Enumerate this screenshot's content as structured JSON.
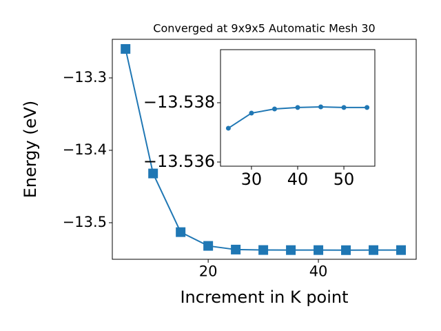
{
  "chart_data": [
    {
      "type": "line",
      "title": "Converged at 9x9x5 Automatic Mesh 30",
      "x_label": "Increment in K point",
      "y_label": "Energy (eV)",
      "x": [
        5,
        10,
        15,
        20,
        25,
        30,
        35,
        40,
        45,
        50,
        55
      ],
      "series": [
        {
          "color": "#1f77b4",
          "marker": "square",
          "values": [
            -13.26,
            -13.432,
            -13.513,
            -13.532,
            -13.5371,
            -13.5377,
            -13.5378,
            -13.5378,
            -13.5379,
            -13.5378,
            -13.5378
          ]
        }
      ],
      "xlim": [
        2.6,
        57.75
      ],
      "ylim": [
        -13.5505,
        -13.2467
      ],
      "xticks": [
        20,
        40
      ],
      "yticks": [
        {
          "value": -13.5,
          "label": "−13.5"
        },
        {
          "value": -13.4,
          "label": "−13.4"
        },
        {
          "value": -13.3,
          "label": "−13.3"
        }
      ]
    },
    {
      "type": "line",
      "x": [
        25,
        30,
        35,
        40,
        45,
        50,
        55
      ],
      "series": [
        {
          "color": "#1f77b4",
          "marker": "circle",
          "values": [
            -13.53714,
            -13.53765,
            -13.53779,
            -13.53784,
            -13.53786,
            -13.53784,
            -13.53784
          ]
        }
      ],
      "xlim": [
        23.3,
        56.7
      ],
      "ylim": [
        -13.53586,
        -13.53979
      ],
      "xticks": [
        30,
        40,
        50
      ],
      "yticks": [
        {
          "value": -13.536,
          "label": "−13.536"
        },
        {
          "value": -13.538,
          "label": "−13.538"
        }
      ]
    }
  ]
}
